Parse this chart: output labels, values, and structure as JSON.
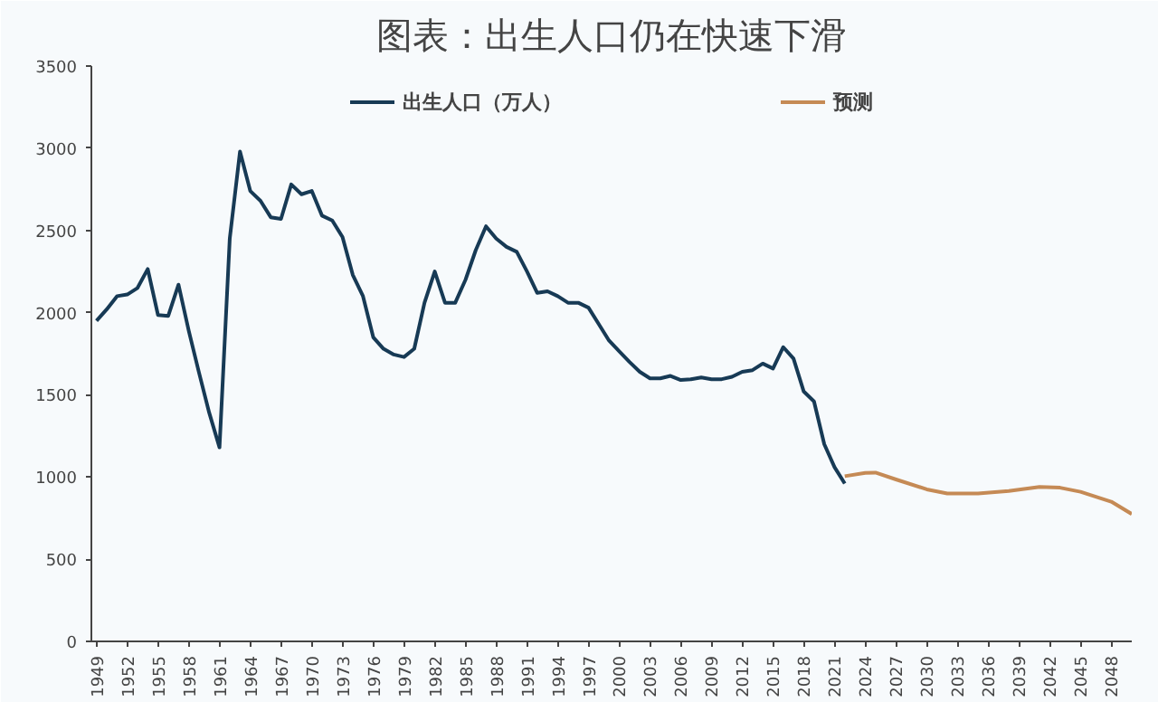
{
  "chart_data": {
    "type": "line",
    "title": "图表：出生人口仍在快速下滑",
    "xlim": [
      1948.5,
      2050
    ],
    "ylim": [
      0,
      3500
    ],
    "yticks": [
      0,
      500,
      1000,
      1500,
      2000,
      2500,
      3000,
      3500
    ],
    "xticks": [
      1949,
      1952,
      1955,
      1958,
      1961,
      1964,
      1967,
      1970,
      1973,
      1976,
      1979,
      1982,
      1985,
      1988,
      1991,
      1994,
      1997,
      2000,
      2003,
      2006,
      2009,
      2012,
      2015,
      2018,
      2021,
      2024,
      2027,
      2030,
      2033,
      2036,
      2039,
      2042,
      2045,
      2048
    ],
    "grid": false,
    "legend": "top",
    "marker": "none",
    "line_style": "solid",
    "series": [
      {
        "name": "出生人口（万人）",
        "color": "#173a55",
        "x": [
          1949,
          1950,
          1951,
          1952,
          1953,
          1954,
          1955,
          1956,
          1957,
          1958,
          1959,
          1960,
          1961,
          1962,
          1963,
          1964,
          1965,
          1966,
          1967,
          1968,
          1969,
          1970,
          1971,
          1972,
          1973,
          1974,
          1975,
          1976,
          1977,
          1978,
          1979,
          1980,
          1981,
          1982,
          1983,
          1984,
          1985,
          1986,
          1987,
          1988,
          1989,
          1990,
          1991,
          1992,
          1993,
          1994,
          1995,
          1996,
          1997,
          1998,
          1999,
          2000,
          2001,
          2002,
          2003,
          2004,
          2005,
          2006,
          2007,
          2008,
          2009,
          2010,
          2011,
          2012,
          2013,
          2014,
          2015,
          2016,
          2017,
          2018,
          2019,
          2020,
          2021,
          2022
        ],
        "values": [
          1950,
          2020,
          2100,
          2110,
          2150,
          2265,
          1985,
          1980,
          2170,
          1890,
          1635,
          1390,
          1180,
          2450,
          2980,
          2740,
          2680,
          2580,
          2570,
          2780,
          2720,
          2740,
          2590,
          2560,
          2460,
          2230,
          2100,
          1850,
          1780,
          1745,
          1730,
          1780,
          2060,
          2250,
          2060,
          2060,
          2200,
          2380,
          2525,
          2450,
          2400,
          2370,
          2250,
          2120,
          2130,
          2100,
          2060,
          2060,
          2030,
          1930,
          1830,
          1765,
          1700,
          1640,
          1600,
          1600,
          1615,
          1590,
          1595,
          1605,
          1595,
          1595,
          1610,
          1640,
          1650,
          1690,
          1660,
          1790,
          1720,
          1520,
          1460,
          1200,
          1060,
          960
        ]
      },
      {
        "name": "预测",
        "color": "#c58a55",
        "x": [
          2022,
          2024,
          2025,
          2027,
          2030,
          2032,
          2035,
          2038,
          2041,
          2043,
          2045,
          2048,
          2050
        ],
        "values": [
          1005,
          1025,
          1027,
          985,
          925,
          900,
          900,
          915,
          940,
          935,
          910,
          850,
          775
        ]
      }
    ]
  }
}
